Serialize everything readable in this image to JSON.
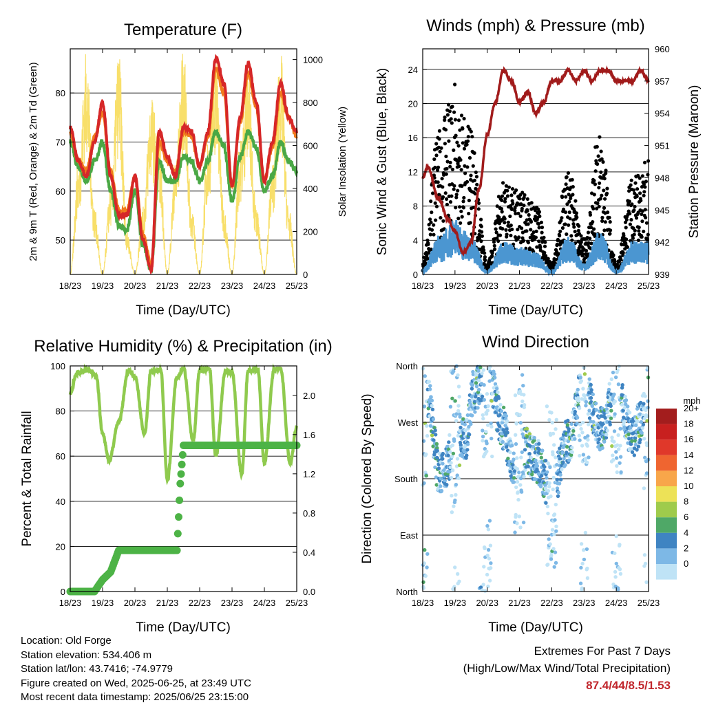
{
  "time_ticks": [
    "18/23",
    "19/23",
    "20/23",
    "21/23",
    "22/23",
    "23/23",
    "24/23",
    "25/23"
  ],
  "x_label": "Time (Day/UTC)",
  "temperature": {
    "title": "Temperature (F)",
    "ylabel_left": "2m & 9m T (Red, Orange) & 2m Td (Green)",
    "ylabel_right": "Solar Insolation (Yellow)",
    "left_ticks": [
      "50",
      "60",
      "70",
      "80"
    ],
    "right_ticks": [
      "0",
      "200",
      "400",
      "600",
      "800",
      "1000"
    ],
    "colors": {
      "t2m": "#d62728",
      "t9m": "#f07a1c",
      "td": "#4aa845",
      "solar": "#f8df6a"
    }
  },
  "winds": {
    "title": "Winds (mph) & Pressure (mb)",
    "ylabel_left": "Sonic Wind & Gust (Blue, Black)",
    "ylabel_right": "Station Pressure (Maroon)",
    "left_ticks": [
      "0",
      "4",
      "8",
      "12",
      "16",
      "20",
      "24"
    ],
    "right_ticks": [
      "939",
      "942",
      "945",
      "948",
      "951",
      "954",
      "957",
      "960"
    ],
    "colors": {
      "wind": "#4b96d1",
      "gust": "#000000",
      "pressure": "#a11b1b"
    }
  },
  "humidity": {
    "title": "Relative Humidity (%) & Precipitation (in)",
    "ylabel_left": "Percent & Total Rainfall",
    "left_ticks": [
      "0",
      "20",
      "40",
      "60",
      "80",
      "100"
    ],
    "right_ticks": [
      "0.0",
      "0.4",
      "0.8",
      "1.2",
      "1.6",
      "2.0"
    ],
    "colors": {
      "rh": "#8fca4e",
      "precip": "#4db346"
    }
  },
  "direction": {
    "title": "Wind Direction",
    "ylabel_left": "Direction (Colored By Speed)",
    "dir_ticks": [
      "North",
      "East",
      "South",
      "West",
      "North"
    ],
    "legend_title": "mph",
    "legend": [
      {
        "label": "20+",
        "color": "#a31d1d"
      },
      {
        "label": "18",
        "color": "#c8201f"
      },
      {
        "label": "16",
        "color": "#e0382a"
      },
      {
        "label": "14",
        "color": "#ef6530"
      },
      {
        "label": "12",
        "color": "#f8a64a"
      },
      {
        "label": "10",
        "color": "#ede257"
      },
      {
        "label": "8",
        "color": "#9fcb4c"
      },
      {
        "label": "6",
        "color": "#4fa867"
      },
      {
        "label": "4",
        "color": "#3f84c2"
      },
      {
        "label": "2",
        "color": "#7db8e6"
      },
      {
        "label": "0",
        "color": "#bfe3f6"
      }
    ]
  },
  "info": {
    "location": "Location: Old Forge",
    "elevation": "Station elevation: 534.406 m",
    "latlon": "Station lat/lon: 43.7416; -74.9779",
    "created": "Figure created on Wed, 2025-06-25, at 23:49 UTC",
    "recent": "Most recent data timestamp: 2025/06/25 23:15:00"
  },
  "extremes": {
    "title": "Extremes For Past 7 Days",
    "subtitle": "(High/Low/Max Wind/Total Precipitation)",
    "values": "87.4/44/8.5/1.53"
  },
  "chart_data": [
    {
      "type": "line",
      "title": "Temperature (F)",
      "xlabel": "Time (Day/UTC)",
      "ylabel": "2m & 9m T (Red, Orange) & 2m Td (Green)",
      "ylabel_right": "Solar Insolation (Yellow)",
      "x": [
        0,
        0.25,
        0.5,
        0.75,
        1,
        1.25,
        1.5,
        1.75,
        2,
        2.25,
        2.5,
        2.75,
        3,
        3.25,
        3.5,
        3.75,
        4,
        4.25,
        4.5,
        4.75,
        5,
        5.25,
        5.5,
        5.75,
        6,
        6.25,
        6.5,
        6.75,
        7
      ],
      "xticks": [
        "18/23",
        "19/23",
        "20/23",
        "21/23",
        "22/23",
        "23/23",
        "24/23",
        "25/23"
      ],
      "ylim": [
        43,
        89
      ],
      "ylim_right": [
        0,
        1050
      ],
      "series": [
        {
          "name": "2m T",
          "values": [
            73,
            66,
            63,
            70,
            78,
            63,
            55,
            55,
            63,
            50,
            44,
            72,
            67,
            63,
            73,
            72,
            65,
            72,
            87,
            82,
            61,
            75,
            86,
            78,
            62,
            70,
            82,
            75,
            72
          ]
        },
        {
          "name": "9m T",
          "values": [
            72,
            66,
            64,
            71,
            76,
            64,
            56,
            56,
            63,
            51,
            45,
            70,
            66,
            64,
            72,
            71,
            65,
            71,
            85,
            80,
            61,
            74,
            84,
            77,
            62,
            69,
            80,
            75,
            71
          ]
        },
        {
          "name": "2m Td",
          "values": [
            70,
            65,
            62,
            66,
            70,
            60,
            53,
            52,
            60,
            49,
            44,
            66,
            62,
            62,
            67,
            66,
            62,
            66,
            72,
            69,
            58,
            67,
            72,
            69,
            60,
            63,
            70,
            66,
            64
          ]
        },
        {
          "name": "Solar",
          "values": [
            0,
            500,
            1000,
            300,
            0,
            400,
            1000,
            200,
            0,
            300,
            800,
            600,
            0,
            500,
            1000,
            300,
            0,
            600,
            1000,
            300,
            0,
            600,
            950,
            300,
            0,
            500,
            1000,
            300,
            0
          ]
        }
      ]
    },
    {
      "type": "scatter",
      "title": "Winds (mph) & Pressure (mb)",
      "xlabel": "Time (Day/UTC)",
      "ylabel": "Sonic Wind & Gust (Blue, Black)",
      "ylabel_right": "Station Pressure (Maroon)",
      "ylim": [
        0,
        26.4
      ],
      "ylim_right": [
        939,
        960
      ],
      "series": [
        {
          "name": "Gust",
          "x": [
            0,
            0.5,
            1,
            1.25,
            1.5,
            2,
            2.5,
            3,
            3.5,
            4,
            4.5,
            5,
            5.5,
            6,
            6.5,
            7
          ],
          "values": [
            1.5,
            12,
            16,
            14,
            12,
            1,
            8,
            7,
            6,
            1,
            9,
            3,
            13,
            1,
            8,
            10
          ]
        },
        {
          "name": "Sonic Wind",
          "x": [
            0,
            0.5,
            1,
            1.25,
            1.5,
            2,
            2.5,
            3,
            3.5,
            4,
            4.5,
            5,
            5.5,
            6,
            6.5,
            7
          ],
          "values": [
            0.5,
            3.5,
            5,
            4,
            3.5,
            0.3,
            3,
            2.5,
            2,
            0.3,
            3.5,
            1,
            4,
            0.3,
            3,
            3
          ]
        },
        {
          "name": "Station Pressure",
          "x": [
            0,
            0.15,
            0.5,
            0.8,
            1,
            1.25,
            1.5,
            1.75,
            2,
            2.25,
            2.5,
            2.75,
            3,
            3.25,
            3.5,
            3.75,
            4,
            4.25,
            4.5,
            4.75,
            5,
            5.25,
            5.5,
            5.75,
            6,
            6.25,
            6.5,
            6.75,
            7
          ],
          "values": [
            948,
            949,
            946,
            944,
            943,
            941,
            942,
            947,
            952,
            955,
            958,
            957,
            955,
            956,
            954,
            955,
            957,
            957,
            958,
            957,
            958,
            957,
            958,
            958,
            957,
            957,
            957,
            958,
            957
          ]
        }
      ]
    },
    {
      "type": "line",
      "title": "Relative Humidity (%) & Precipitation (in)",
      "xlabel": "Time (Day/UTC)",
      "ylabel": "Percent & Total Rainfall",
      "ylim": [
        0,
        100
      ],
      "ylim_right": [
        0,
        2.3
      ],
      "series": [
        {
          "name": "Relative Humidity",
          "x": [
            0,
            0.2,
            0.5,
            0.8,
            1,
            1.2,
            1.5,
            1.8,
            2,
            2.3,
            2.5,
            2.8,
            3,
            3.3,
            3.5,
            3.8,
            4,
            4.3,
            4.5,
            4.8,
            5,
            5.3,
            5.5,
            5.8,
            6,
            6.3,
            6.5,
            6.8,
            7
          ],
          "values": [
            88,
            97,
            98,
            96,
            70,
            58,
            75,
            98,
            95,
            70,
            98,
            98,
            50,
            95,
            99,
            67,
            98,
            99,
            60,
            98,
            97,
            52,
            98,
            98,
            57,
            98,
            99,
            57,
            73
          ]
        },
        {
          "name": "Total Precipitation",
          "x": [
            0,
            0.75,
            1.0,
            1.25,
            1.5,
            2.5,
            3.3,
            3.4,
            3.5,
            4.5,
            5.5,
            6.5,
            7
          ],
          "values": [
            0,
            0,
            0.12,
            0.2,
            0.42,
            0.42,
            0.42,
            1.1,
            1.49,
            1.49,
            1.49,
            1.49,
            1.49
          ]
        }
      ]
    },
    {
      "type": "scatter",
      "title": "Wind Direction",
      "xlabel": "Time (Day/UTC)",
      "ylabel": "Direction (Colored By Speed)",
      "ylim": [
        0,
        360
      ],
      "series": [
        {
          "name": "Direction",
          "x": [
            0.2,
            0.5,
            0.75,
            1,
            1.3,
            1.6,
            2.0,
            2.5,
            2.8,
            3.1,
            3.5,
            4.0,
            4.5,
            5.0,
            5.5,
            6.0,
            6.5,
            7.0
          ],
          "values": [
            300,
            190,
            200,
            270,
            240,
            320,
            350,
            260,
            200,
            230,
            210,
            160,
            240,
            330,
            260,
            320,
            250,
            300
          ]
        }
      ]
    }
  ]
}
